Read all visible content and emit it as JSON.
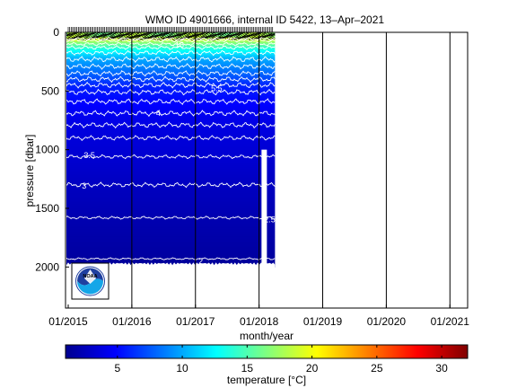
{
  "chart_data": {
    "type": "heatmap",
    "title": "WMO ID 4901666, internal ID 5422, 13–Apr–2021",
    "xlabel": "month/year",
    "ylabel": "pressure [dbar]",
    "colorbar_label": "temperature [°C]",
    "x_ticks": [
      "01/2015",
      "01/2016",
      "01/2017",
      "01/2018",
      "01/2019",
      "01/2020",
      "01/2021"
    ],
    "y_ticks": [
      "0",
      "500",
      "1000",
      "1500",
      "2000"
    ],
    "ylim": [
      2350,
      0
    ],
    "x_range": [
      "01/2015",
      "04/2021"
    ],
    "data_extent": {
      "x_start": "01/2015",
      "x_end": "04/2018",
      "max_pressure": 2000
    },
    "colorbar_ticks": [
      "5",
      "10",
      "15",
      "20",
      "25",
      "30"
    ],
    "colorbar_range": [
      1,
      32
    ],
    "colormap": "jet",
    "contour_labels": [
      {
        "text": "16",
        "x": "2016-10",
        "y": 100
      },
      {
        "text": "5.5",
        "x": "2017-05",
        "y": 470
      },
      {
        "text": "4",
        "x": "2016-06",
        "y": 680
      },
      {
        "text": "3.5",
        "x": "2015-05",
        "y": 1040
      },
      {
        "text": "3",
        "x": "2015-04",
        "y": 1300
      },
      {
        "text": "2.5",
        "x": "2018-03",
        "y": 1590
      },
      {
        "text": "2",
        "x": "2017-02",
        "y": 1945
      }
    ],
    "isotherms": [
      {
        "temp": 20,
        "p": 55,
        "amp": 12
      },
      {
        "temp": 18,
        "p": 70,
        "amp": 14
      },
      {
        "temp": 16,
        "p": 100,
        "amp": 16
      },
      {
        "temp": 14,
        "p": 130,
        "amp": 18
      },
      {
        "temp": 12,
        "p": 175,
        "amp": 22
      },
      {
        "temp": 10,
        "p": 230,
        "amp": 25
      },
      {
        "temp": 9,
        "p": 290,
        "amp": 25
      },
      {
        "temp": 8,
        "p": 350,
        "amp": 25
      },
      {
        "temp": 7,
        "p": 400,
        "amp": 25
      },
      {
        "temp": 6,
        "p": 450,
        "amp": 25
      },
      {
        "temp": 5.5,
        "p": 510,
        "amp": 25
      },
      {
        "temp": 5,
        "p": 590,
        "amp": 25
      },
      {
        "temp": 4.5,
        "p": 690,
        "amp": 25
      },
      {
        "temp": 4,
        "p": 790,
        "amp": 25
      },
      {
        "temp": 3.75,
        "p": 900,
        "amp": 22
      },
      {
        "temp": 3.5,
        "p": 1060,
        "amp": 18
      },
      {
        "temp": 3,
        "p": 1300,
        "amp": 22
      },
      {
        "temp": 2.5,
        "p": 1580,
        "amp": 14
      },
      {
        "temp": 2,
        "p": 1930,
        "amp": 10
      }
    ],
    "colors": {
      "frame": "#000000",
      "isotherm": "#ffffff",
      "surface_contours": "#000000",
      "gridlines": "#000000"
    },
    "logo": "noaa-logo",
    "grid": "vertical at year boundaries"
  }
}
